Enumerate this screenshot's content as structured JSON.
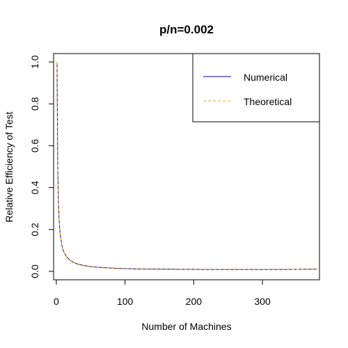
{
  "chart_data": {
    "type": "line",
    "title": "p/n=0.002",
    "xlabel": "Number of Machines",
    "ylabel": "Relative Efficiency of Test",
    "xlim": [
      -4,
      383
    ],
    "ylim": [
      -0.04,
      1.04
    ],
    "xticks": [
      0,
      100,
      200,
      300
    ],
    "xtick_labels": [
      "0",
      "100",
      "200",
      "300"
    ],
    "yticks": [
      0.0,
      0.2,
      0.4,
      0.6,
      0.8,
      1.0
    ],
    "ytick_labels": [
      "0.0",
      "0.2",
      "0.4",
      "0.6",
      "0.8",
      "1.0"
    ],
    "grid": false,
    "legend_position": "top-right",
    "series": [
      {
        "name": "Numerical",
        "color": "#00008B",
        "style": "solid",
        "x": [
          1,
          2,
          3,
          4,
          5,
          6,
          8,
          10,
          12,
          15,
          20,
          25,
          30,
          40,
          50,
          60,
          80,
          100,
          120,
          150,
          180,
          200,
          220,
          250,
          280,
          300,
          330,
          350,
          380
        ],
        "y": [
          1.0,
          0.5,
          0.33,
          0.25,
          0.2,
          0.17,
          0.125,
          0.1,
          0.085,
          0.07,
          0.053,
          0.043,
          0.036,
          0.028,
          0.023,
          0.02,
          0.016,
          0.013,
          0.012,
          0.011,
          0.01,
          0.01,
          0.009,
          0.009,
          0.009,
          0.009,
          0.009,
          0.01,
          0.011
        ]
      },
      {
        "name": "Theoretical",
        "color": "#E69F00",
        "style": "dashed",
        "x": [
          1,
          2,
          3,
          4,
          5,
          6,
          8,
          10,
          12,
          15,
          20,
          25,
          30,
          40,
          50,
          60,
          80,
          100,
          120,
          150,
          180,
          200,
          220,
          250,
          280,
          300,
          330,
          350,
          380
        ],
        "y": [
          1.0,
          0.5,
          0.33,
          0.25,
          0.2,
          0.17,
          0.125,
          0.1,
          0.085,
          0.069,
          0.052,
          0.042,
          0.035,
          0.027,
          0.022,
          0.019,
          0.015,
          0.012,
          0.011,
          0.01,
          0.009,
          0.009,
          0.009,
          0.009,
          0.009,
          0.009,
          0.009,
          0.01,
          0.011
        ]
      }
    ]
  }
}
